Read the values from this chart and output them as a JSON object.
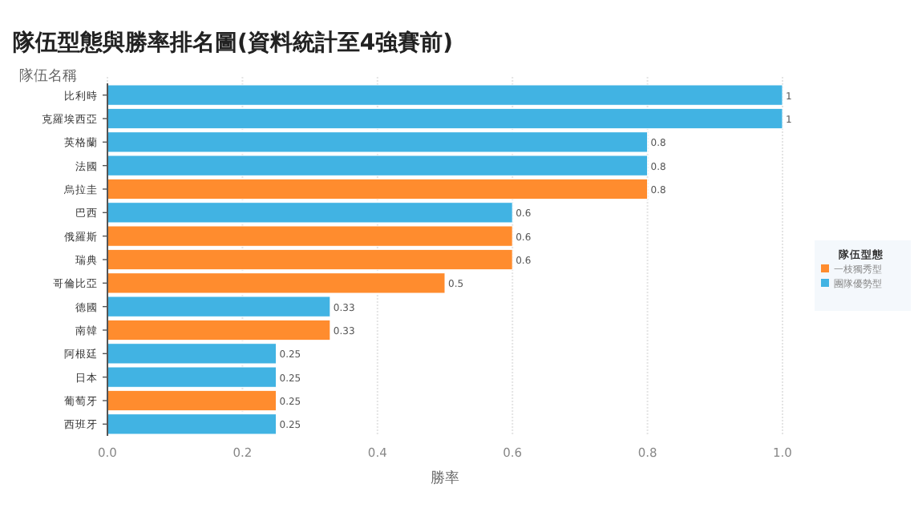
{
  "chart_data": {
    "type": "bar",
    "orientation": "horizontal",
    "stacked": true,
    "title": "隊伍型態與勝率排名圖(資料統計至4強賽前)",
    "xlabel": "勝率",
    "ylabel": "隊伍名稱",
    "legend_title": "隊伍型態",
    "categories": [
      "比利時",
      "克羅埃西亞",
      "英格蘭",
      "法國",
      "烏拉圭",
      "巴西",
      "俄羅斯",
      "瑞典",
      "哥倫比亞",
      "德國",
      "南韓",
      "阿根廷",
      "日本",
      "葡萄牙",
      "西班牙"
    ],
    "series": [
      {
        "name": "一枝獨秀型",
        "color": "#ff8c2e",
        "values": [
          null,
          null,
          null,
          null,
          0.8,
          null,
          0.6,
          0.6,
          0.5,
          null,
          0.33,
          null,
          null,
          0.25,
          null
        ]
      },
      {
        "name": "團隊優勢型",
        "color": "#41b3e3",
        "values": [
          1,
          1,
          0.8,
          0.8,
          null,
          0.6,
          null,
          null,
          null,
          0.33,
          null,
          0.25,
          0.25,
          null,
          0.25
        ]
      }
    ],
    "xlim": [
      0,
      1
    ],
    "xticks": [
      {
        "value": 0,
        "label": "0.0"
      },
      {
        "value": 0.2,
        "label": "0.2"
      },
      {
        "value": 0.4,
        "label": "0.4"
      },
      {
        "value": 0.6,
        "label": "0.6"
      },
      {
        "value": 0.8,
        "label": "0.8"
      },
      {
        "value": 1,
        "label": "1.0"
      }
    ],
    "grid": "x",
    "legend": "right",
    "data_labels": true
  }
}
